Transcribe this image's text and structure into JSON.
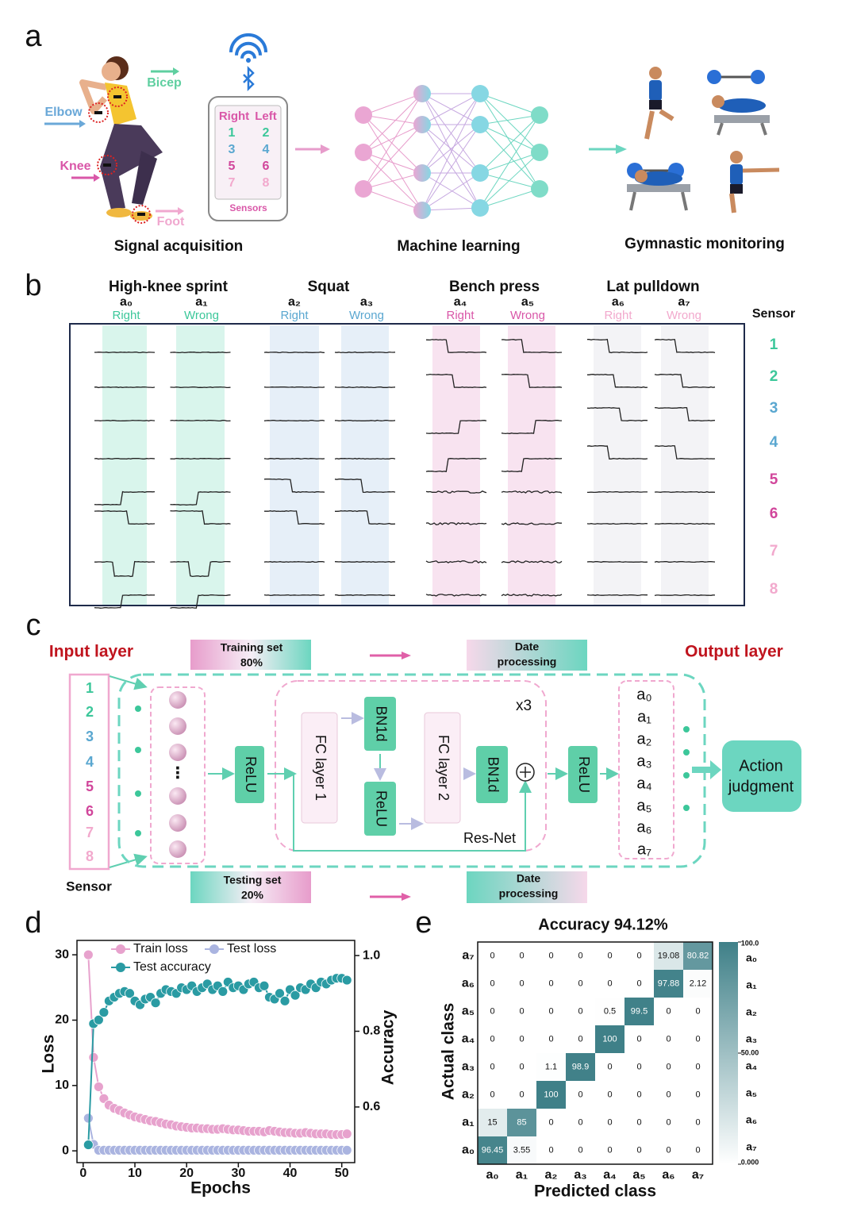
{
  "panel_labels": [
    "a",
    "b",
    "c",
    "d",
    "e"
  ],
  "a": {
    "body_labels": [
      "Bicep",
      "Elbow",
      "Knee",
      "Foot"
    ],
    "phone": {
      "columns": [
        "Right",
        "Left"
      ],
      "sensors": [
        "1",
        "2",
        "3",
        "4",
        "5",
        "6",
        "7",
        "8"
      ],
      "caption": "Sensors"
    },
    "captions": [
      "Signal acquisition",
      "Machine learning",
      "Gymnastic monitoring"
    ]
  },
  "b": {
    "groups": [
      {
        "title": "High-knee sprint",
        "actions": [
          {
            "label": "a₀",
            "status": "Right"
          },
          {
            "label": "a₁",
            "status": "Wrong"
          }
        ]
      },
      {
        "title": "Squat",
        "actions": [
          {
            "label": "a₂",
            "status": "Right"
          },
          {
            "label": "a₃",
            "status": "Wrong"
          }
        ]
      },
      {
        "title": "Bench press",
        "actions": [
          {
            "label": "a₄",
            "status": "Right"
          },
          {
            "label": "a₅",
            "status": "Wrong"
          }
        ]
      },
      {
        "title": "Lat pulldown",
        "actions": [
          {
            "label": "a₆",
            "status": "Right"
          },
          {
            "label": "a₇",
            "status": "Wrong"
          }
        ]
      }
    ],
    "sensor_title": "Sensor",
    "sensors": [
      "1",
      "2",
      "3",
      "4",
      "5",
      "6",
      "7",
      "8"
    ]
  },
  "c": {
    "input_title": "Input layer",
    "output_title": "Output layer",
    "training": [
      "Training set",
      "80%"
    ],
    "testing": [
      "Testing set",
      "20%"
    ],
    "processing": [
      "Date",
      "processing"
    ],
    "inputs": [
      "1",
      "2",
      "3",
      "4",
      "5",
      "6",
      "7",
      "8"
    ],
    "sensor_label": "Sensor",
    "ellipsis": "⋮",
    "relu": "ReLU",
    "fc1": "FC layer 1",
    "fc2": "FC layer 2",
    "bn": "BN1d",
    "repeat": "x3",
    "resnet": "Res-Net",
    "outputs": [
      "a₀",
      "a₁",
      "a₂",
      "a₃",
      "a₄",
      "a₅",
      "a₆",
      "a₇"
    ],
    "judgment": [
      "Action",
      "judgment"
    ]
  },
  "chart_data": [
    {
      "type": "line",
      "xlabel": "Epochs",
      "ylabel": "Loss",
      "y2label": "Accuracy",
      "x": [
        1,
        2,
        3,
        4,
        5,
        6,
        7,
        8,
        9,
        10,
        11,
        12,
        13,
        14,
        15,
        16,
        17,
        18,
        19,
        20,
        21,
        22,
        23,
        24,
        25,
        26,
        27,
        28,
        29,
        30,
        31,
        32,
        33,
        34,
        35,
        36,
        37,
        38,
        39,
        40,
        41,
        42,
        43,
        44,
        45,
        46,
        47,
        48,
        49,
        50,
        51
      ],
      "xlim": [
        -1.2,
        52.5
      ],
      "xticks": [
        0,
        10,
        20,
        30,
        40,
        50
      ],
      "ylim": [
        -1.8,
        32.2
      ],
      "yticks": [
        0,
        10,
        20,
        30
      ],
      "y2lim": [
        0.453,
        1.04
      ],
      "y2ticks": [
        0.6,
        0.8,
        {
          "value": 1,
          "label": "1.0"
        }
      ],
      "series": [
        {
          "name": "Train loss",
          "color": "#e7a2cd",
          "values": [
            30,
            14.3,
            9.8,
            8,
            7,
            6.5,
            6.2,
            5.8,
            5.5,
            5.2,
            5,
            4.8,
            4.6,
            4.5,
            4.3,
            4.1,
            4,
            3.8,
            3.7,
            3.6,
            3.5,
            3.5,
            3.4,
            3.4,
            3.3,
            3.3,
            3.4,
            3.3,
            3.2,
            3.2,
            3.1,
            3,
            3,
            3,
            2.9,
            3.1,
            3,
            2.9,
            2.8,
            2.8,
            2.7,
            2.7,
            2.8,
            2.7,
            2.6,
            2.6,
            2.6,
            2.5,
            2.5,
            2.5,
            2.6
          ]
        },
        {
          "name": "Test loss",
          "color": "#aab4e0",
          "values": [
            5,
            1,
            0.1,
            0.1,
            0.1,
            0.1,
            0.1,
            0.1,
            0.1,
            0.1,
            0.1,
            0.1,
            0.1,
            0.1,
            0.1,
            0.1,
            0.1,
            0.1,
            0.1,
            0.1,
            0.1,
            0.1,
            0.1,
            0.1,
            0.1,
            0.1,
            0.1,
            0.1,
            0.1,
            0.1,
            0.1,
            0.1,
            0.1,
            0.1,
            0.1,
            0.1,
            0.1,
            0.1,
            0.1,
            0.1,
            0.1,
            0.1,
            0.1,
            0.1,
            0.1,
            0.1,
            0.1,
            0.1,
            0.1,
            0.1,
            0.1
          ]
        },
        {
          "name": "Test accuracy",
          "color": "#2a9ba3",
          "axis": "y2",
          "values": [
            0.5,
            0.82,
            0.83,
            0.85,
            0.88,
            0.89,
            0.9,
            0.905,
            0.9,
            0.88,
            0.87,
            0.885,
            0.89,
            0.875,
            0.9,
            0.91,
            0.905,
            0.9,
            0.915,
            0.91,
            0.92,
            0.905,
            0.915,
            0.925,
            0.91,
            0.92,
            0.905,
            0.93,
            0.915,
            0.92,
            0.91,
            0.925,
            0.93,
            0.915,
            0.92,
            0.89,
            0.885,
            0.9,
            0.88,
            0.91,
            0.895,
            0.915,
            0.91,
            0.925,
            0.915,
            0.93,
            0.925,
            0.935,
            0.94,
            0.94,
            0.935
          ]
        }
      ]
    },
    {
      "type": "heatmap",
      "title": "Accuracy 94.12%",
      "xlabel": "Predicted class",
      "ylabel": "Actual class",
      "categories": [
        "a₀",
        "a₁",
        "a₂",
        "a₃",
        "a₄",
        "a₅",
        "a₆",
        "a₇"
      ],
      "values": [
        [
          96.45,
          3.55,
          0,
          0,
          0,
          0,
          0,
          0
        ],
        [
          15,
          85,
          0,
          0,
          0,
          0,
          0,
          0
        ],
        [
          0,
          0,
          100,
          0,
          0,
          0,
          0,
          0
        ],
        [
          0,
          0,
          1.1,
          98.9,
          0,
          0,
          0,
          0
        ],
        [
          0,
          0,
          0,
          0,
          100,
          0,
          0,
          0
        ],
        [
          0,
          0,
          0,
          0,
          0.5,
          99.5,
          0,
          0
        ],
        [
          0,
          0,
          0,
          0,
          0,
          0,
          97.88,
          2.12
        ],
        [
          0,
          0,
          0,
          0,
          0,
          0,
          19.08,
          80.82
        ]
      ],
      "zlim": [
        0,
        100
      ],
      "colors": [
        "#ffffff",
        "#3f8088"
      ],
      "colorbar_ticks": [
        {
          "value": 100,
          "label": "100.0"
        },
        {
          "value": 50,
          "label": "50.00"
        },
        {
          "value": 0,
          "label": "0.000"
        }
      ]
    }
  ]
}
